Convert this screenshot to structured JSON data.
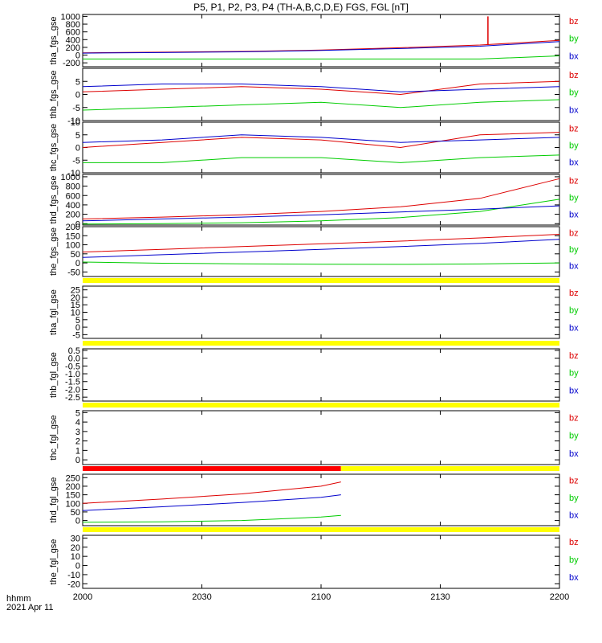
{
  "title": "P5, P1, P2, P3, P4 (TH-A,B,C,D,E) FGS, FGL [nT]",
  "colors": {
    "bz": "#dd0000",
    "by": "#00cc00",
    "bx": "#0000cc",
    "status_ok": "#ffff00",
    "status_bad": "#ff0000"
  },
  "time_axis": {
    "range_hhmm": [
      "2000",
      "2200"
    ],
    "ticks": [
      "2000",
      "2030",
      "2100",
      "2130",
      "2200"
    ],
    "unit_label": "hhmm",
    "date_label": "2021 Apr 11"
  },
  "chart_data": [
    {
      "type": "line",
      "panel": "tha_fgs_gse",
      "ylabel": "tha_fgs_gse",
      "ylim": [
        -300,
        1050
      ],
      "yticks": [
        "1000",
        "800",
        "600",
        "400",
        "200",
        "0",
        "-200"
      ],
      "x": [
        "2000",
        "2020",
        "2040",
        "2100",
        "2120",
        "2140",
        "2200"
      ],
      "series": [
        {
          "name": "bz",
          "values": [
            60,
            75,
            95,
            130,
            190,
            260,
            380
          ]
        },
        {
          "name": "by",
          "values": [
            -100,
            -100,
            -100,
            -100,
            -100,
            -100,
            -20
          ]
        },
        {
          "name": "bx",
          "values": [
            50,
            65,
            85,
            120,
            170,
            230,
            350
          ]
        }
      ],
      "annotations": [
        {
          "series": "bz",
          "type": "spike",
          "x": "2142",
          "y": 1000
        }
      ]
    },
    {
      "type": "line",
      "panel": "thb_fgs_gse",
      "ylabel": "thb_fgs_gse",
      "ylim": [
        -10,
        10
      ],
      "yticks": [
        "5",
        "0",
        "-5",
        "-10"
      ],
      "x": [
        "2000",
        "2020",
        "2040",
        "2100",
        "2120",
        "2140",
        "2200"
      ],
      "series": [
        {
          "name": "bz",
          "values": [
            1,
            2,
            3,
            2,
            0,
            4,
            5
          ]
        },
        {
          "name": "by",
          "values": [
            -6,
            -5,
            -4,
            -3,
            -5,
            -3,
            -2
          ]
        },
        {
          "name": "bx",
          "values": [
            3,
            4,
            4,
            3,
            1,
            2,
            3
          ]
        }
      ]
    },
    {
      "type": "line",
      "panel": "thc_fgs_gse",
      "ylabel": "thc_fgs_gse",
      "ylim": [
        -10,
        10
      ],
      "yticks": [
        "10",
        "5",
        "0",
        "-5",
        "-10"
      ],
      "x": [
        "2000",
        "2020",
        "2040",
        "2100",
        "2120",
        "2140",
        "2200"
      ],
      "series": [
        {
          "name": "bz",
          "values": [
            0,
            2,
            4,
            3,
            0,
            5,
            6
          ]
        },
        {
          "name": "by",
          "values": [
            -6,
            -6,
            -4,
            -4,
            -6,
            -4,
            -3
          ]
        },
        {
          "name": "bx",
          "values": [
            2,
            3,
            5,
            4,
            2,
            3,
            4
          ]
        }
      ]
    },
    {
      "type": "line",
      "panel": "thd_fgs_gse",
      "ylabel": "thd_fgs_gse",
      "ylim": [
        -30,
        1050
      ],
      "yticks": [
        "1000",
        "800",
        "600",
        "400",
        "200",
        "0"
      ],
      "x": [
        "2000",
        "2020",
        "2040",
        "2100",
        "2120",
        "2140",
        "2200"
      ],
      "series": [
        {
          "name": "bz",
          "values": [
            100,
            140,
            190,
            260,
            360,
            540,
            960
          ]
        },
        {
          "name": "by",
          "values": [
            -10,
            0,
            20,
            60,
            130,
            260,
            520
          ]
        },
        {
          "name": "bx",
          "values": [
            60,
            100,
            140,
            190,
            250,
            310,
            380
          ]
        }
      ]
    },
    {
      "type": "line",
      "panel": "the_fgs_gse",
      "ylabel": "the_fgs_gse",
      "ylim": [
        -75,
        200
      ],
      "yticks": [
        "200",
        "150",
        "100",
        "50",
        "0",
        "-50"
      ],
      "x": [
        "2000",
        "2020",
        "2040",
        "2100",
        "2120",
        "2140",
        "2200"
      ],
      "series": [
        {
          "name": "bz",
          "values": [
            60,
            75,
            90,
            105,
            120,
            138,
            158
          ]
        },
        {
          "name": "by",
          "values": [
            5,
            -2,
            -5,
            -7,
            -8,
            -6,
            0
          ]
        },
        {
          "name": "bx",
          "values": [
            30,
            45,
            60,
            75,
            90,
            108,
            130
          ]
        }
      ]
    },
    {
      "type": "line",
      "panel": "tha_fgl_gse",
      "ylabel": "tha_fgl_gse",
      "ylim": [
        -7.5,
        27.5
      ],
      "yticks": [
        "25",
        "20",
        "15",
        "10",
        "5",
        "0",
        "-5"
      ],
      "x": [],
      "series": [],
      "status_bar": [
        {
          "state": "ok",
          "from": "2000",
          "to": "2200"
        }
      ]
    },
    {
      "type": "line",
      "panel": "thb_fgl_gse",
      "ylabel": "thb_fgl_gse",
      "ylim": [
        -2.75,
        0.6
      ],
      "yticks": [
        "0.5",
        "0.0",
        "-0.5",
        "-1.0",
        "-1.5",
        "-2.0",
        "-2.5"
      ],
      "x": [],
      "series": [],
      "status_bar": [
        {
          "state": "ok",
          "from": "2000",
          "to": "2200"
        }
      ]
    },
    {
      "type": "line",
      "panel": "thc_fgl_gse",
      "ylabel": "thc_fgl_gse",
      "ylim": [
        -0.5,
        5.2
      ],
      "yticks": [
        "5",
        "4",
        "3",
        "2",
        "1",
        "0"
      ],
      "x": [],
      "series": [],
      "status_bar": [
        {
          "state": "ok",
          "from": "2000",
          "to": "2200"
        }
      ]
    },
    {
      "type": "line",
      "panel": "thd_fgl_gse",
      "ylabel": "thd_fgl_gse",
      "ylim": [
        -30,
        270
      ],
      "yticks": [
        "250",
        "200",
        "150",
        "100",
        "50",
        "0"
      ],
      "x": [
        "2000",
        "2020",
        "2040",
        "2100",
        "2105"
      ],
      "series": [
        {
          "name": "bz",
          "values": [
            100,
            125,
            155,
            200,
            225
          ]
        },
        {
          "name": "by",
          "values": [
            -10,
            -8,
            0,
            20,
            30
          ]
        },
        {
          "name": "bx",
          "values": [
            58,
            80,
            105,
            135,
            150
          ]
        }
      ],
      "status_bar": [
        {
          "state": "bad",
          "from": "2000",
          "to": "2105"
        },
        {
          "state": "ok",
          "from": "2105",
          "to": "2200"
        }
      ]
    },
    {
      "type": "line",
      "panel": "the_fgl_gse",
      "ylabel": "the_fgl_gse",
      "ylim": [
        -25,
        33
      ],
      "yticks": [
        "30",
        "20",
        "10",
        "0",
        "-10",
        "-20"
      ],
      "x": [],
      "series": [],
      "status_bar": [
        {
          "state": "ok",
          "from": "2000",
          "to": "2200"
        }
      ]
    }
  ]
}
